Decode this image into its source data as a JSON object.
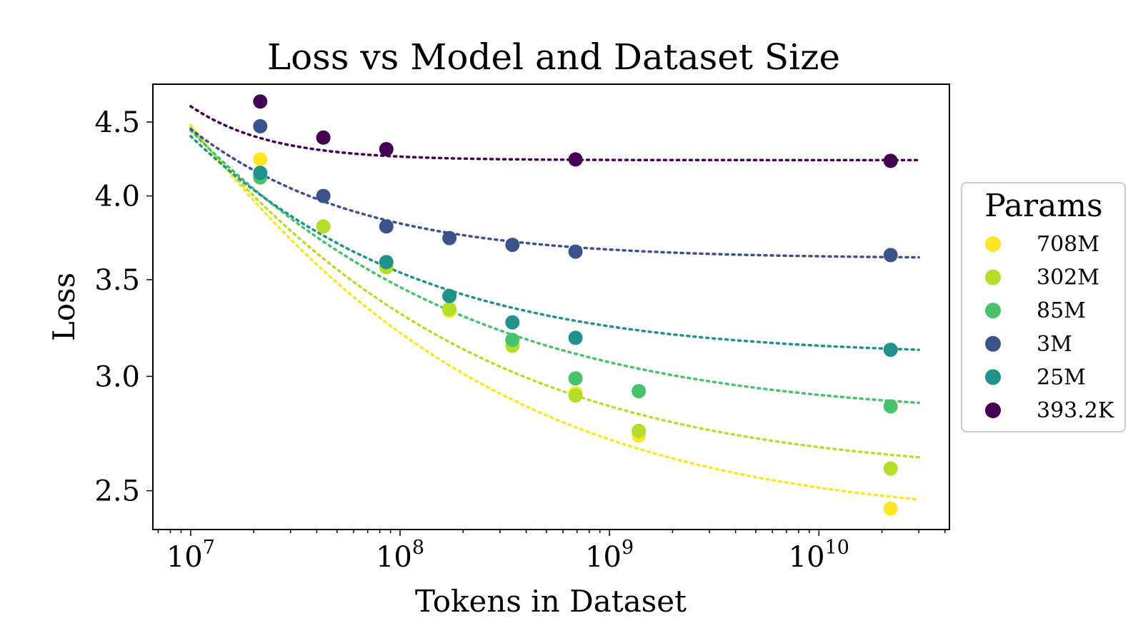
{
  "chart_data": {
    "type": "scatter",
    "title": "Loss vs Model and Dataset Size",
    "xlabel": "Tokens in Dataset",
    "ylabel": "Loss",
    "xscale": "log",
    "yscale": "log",
    "xlim": [
      6600000,
      42000000000
    ],
    "ylim": [
      2.35,
      4.78
    ],
    "xticks": [
      {
        "value": 10000000,
        "base": "10",
        "exp": "7"
      },
      {
        "value": 100000000,
        "base": "10",
        "exp": "8"
      },
      {
        "value": 1000000000,
        "base": "10",
        "exp": "9"
      },
      {
        "value": 10000000000,
        "base": "10",
        "exp": "10"
      }
    ],
    "yticks": [
      {
        "value": 2.5,
        "label": "2.5"
      },
      {
        "value": 3.0,
        "label": "3.0"
      },
      {
        "value": 3.5,
        "label": "3.5"
      },
      {
        "value": 4.0,
        "label": "4.0"
      },
      {
        "value": 4.5,
        "label": "4.5"
      }
    ],
    "fit_x_range": [
      10000000,
      30000000000
    ],
    "legend": {
      "title": "Params",
      "position": "right"
    },
    "series": [
      {
        "name": "708M",
        "color": "#fde725",
        "x": [
          21500000,
          172000000,
          688000000,
          1380000000,
          22000000000
        ],
        "y": [
          4.24,
          3.33,
          2.92,
          2.73,
          2.43
        ],
        "fit": {
          "L_inf": 2.38,
          "A": 2.1,
          "alpha": 0.4
        }
      },
      {
        "name": "302M",
        "color": "#b5de2b",
        "x": [
          43000000,
          86000000,
          172000000,
          344000000,
          688000000,
          1380000000,
          22000000000
        ],
        "y": [
          3.81,
          3.57,
          3.34,
          3.15,
          2.91,
          2.75,
          2.59
        ],
        "fit": {
          "L_inf": 2.56,
          "A": 1.9,
          "alpha": 0.4
        }
      },
      {
        "name": "85M",
        "color": "#4ac16d",
        "x": [
          21500000,
          344000000,
          688000000,
          1380000000,
          22000000000
        ],
        "y": [
          4.12,
          3.18,
          2.99,
          2.93,
          2.86
        ],
        "fit": {
          "L_inf": 2.81,
          "A": 1.63,
          "alpha": 0.4
        }
      },
      {
        "name": "3M",
        "color": "#3b528b",
        "x": [
          21500000,
          43000000,
          86000000,
          172000000,
          344000000,
          688000000,
          22000000000
        ],
        "y": [
          4.47,
          4.0,
          3.81,
          3.74,
          3.7,
          3.66,
          3.64
        ],
        "fit": {
          "L_inf": 3.62,
          "A": 0.83,
          "alpha": 0.6
        }
      },
      {
        "name": "25M",
        "color": "#21918c",
        "x": [
          21500000,
          86000000,
          172000000,
          344000000,
          688000000,
          22000000000
        ],
        "y": [
          4.15,
          3.6,
          3.41,
          3.27,
          3.19,
          3.13
        ],
        "fit": {
          "L_inf": 3.1,
          "A": 1.3,
          "alpha": 0.47
        }
      },
      {
        "name": "393.2K",
        "color": "#440154",
        "x": [
          21500000,
          43000000,
          86000000,
          688000000,
          22000000000
        ],
        "y": [
          4.65,
          4.39,
          4.31,
          4.24,
          4.23
        ],
        "fit": {
          "L_inf": 4.235,
          "A": 0.38,
          "alpha": 1.2
        }
      }
    ],
    "legend_order": [
      "708M",
      "302M",
      "85M",
      "3M",
      "25M",
      "393.2K"
    ]
  }
}
